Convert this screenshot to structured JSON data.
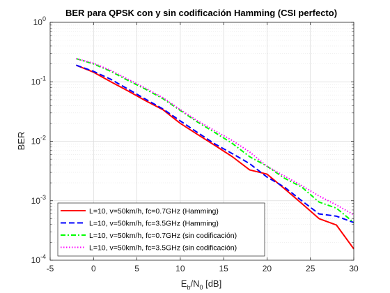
{
  "chart_data": {
    "type": "line",
    "title": "BER para QPSK con y sin codificación Hamming (CSI perfecto)",
    "xlabel": {
      "base": "E",
      "sub1": "b",
      "mid": "/N",
      "sub2": "0",
      "tail": " [dB]"
    },
    "ylabel": "BER",
    "xlim": [
      -5,
      30
    ],
    "ylim": [
      0.0001,
      1
    ],
    "yscale": "log",
    "grid": true,
    "minor_grid": true,
    "legend_position": "bottom-left",
    "x_ticks": [
      -5,
      0,
      5,
      10,
      15,
      20,
      25,
      30
    ],
    "x_tick_labels": [
      "-5",
      "0",
      "5",
      "10",
      "15",
      "20",
      "25",
      "30"
    ],
    "y_ticks": [
      {
        "value": 0.0001,
        "base": "10",
        "exp": "-4"
      },
      {
        "value": 0.001,
        "base": "10",
        "exp": "-3"
      },
      {
        "value": 0.01,
        "base": "10",
        "exp": "-2"
      },
      {
        "value": 0.1,
        "base": "10",
        "exp": "-1"
      },
      {
        "value": 1,
        "base": "10",
        "exp": "0"
      }
    ],
    "x": [
      -2,
      0,
      2,
      4,
      6,
      8,
      10,
      12,
      14,
      16,
      18,
      20,
      22,
      24,
      26,
      28,
      30
    ],
    "series": [
      {
        "name": "L=10, v=50km/h, fc=0.7GHz (Hamming)",
        "color": "#ff0000",
        "dash": "solid",
        "values": [
          0.19,
          0.145,
          0.1,
          0.07,
          0.048,
          0.034,
          0.02,
          0.013,
          0.0085,
          0.0055,
          0.0033,
          0.0028,
          0.0016,
          0.0009,
          0.0005,
          0.00039,
          0.000155
        ]
      },
      {
        "name": "L=10, v=50km/h, fc=3.5GHz (Hamming)",
        "color": "#0000ff",
        "dash": "dashed",
        "values": [
          0.19,
          0.15,
          0.11,
          0.075,
          0.051,
          0.035,
          0.022,
          0.014,
          0.009,
          0.0062,
          0.0042,
          0.0025,
          0.0017,
          0.001,
          0.0006,
          0.00055,
          0.00043
        ]
      },
      {
        "name": "L=10, v=50km/h, fc=0.7GHz (sin codificación)",
        "color": "#00ff00",
        "dash": "dashdot",
        "values": [
          0.245,
          0.2,
          0.15,
          0.105,
          0.075,
          0.052,
          0.033,
          0.021,
          0.014,
          0.0092,
          0.0055,
          0.0038,
          0.0024,
          0.0017,
          0.00095,
          0.00075,
          0.00043
        ]
      },
      {
        "name": "L=10, v=50km/h, fc=3.5GHz (sin codificación)",
        "color": "#ff00ff",
        "dash": "dotted",
        "values": [
          0.245,
          0.205,
          0.155,
          0.11,
          0.078,
          0.054,
          0.034,
          0.022,
          0.015,
          0.0103,
          0.0066,
          0.0038,
          0.0026,
          0.0018,
          0.0012,
          0.00085,
          0.00058
        ]
      }
    ]
  }
}
